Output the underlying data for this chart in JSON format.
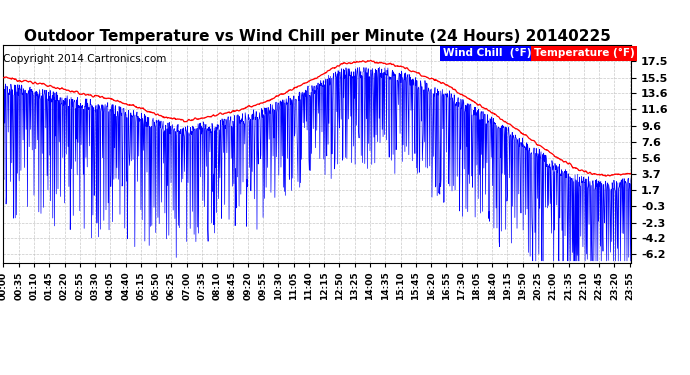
{
  "title": "Outdoor Temperature vs Wind Chill per Minute (24 Hours) 20140225",
  "copyright": "Copyright 2014 Cartronics.com",
  "yticks": [
    17.5,
    15.5,
    13.6,
    11.6,
    9.6,
    7.6,
    5.6,
    3.7,
    1.7,
    -0.3,
    -2.3,
    -4.2,
    -6.2
  ],
  "ylim": [
    -7.2,
    19.5
  ],
  "temp_color": "#ff0000",
  "windchill_color": "#0000ff",
  "background_color": "#ffffff",
  "grid_color": "#bbbbbb",
  "title_fontsize": 11,
  "copyright_fontsize": 7.5,
  "num_minutes": 1440,
  "knots_t": [
    0,
    1,
    2,
    3,
    4,
    5,
    6,
    6.5,
    7,
    8,
    9,
    10,
    11,
    11.5,
    12,
    12.5,
    13,
    13.5,
    14,
    14.5,
    15,
    15.5,
    16,
    16.5,
    17,
    17.5,
    18,
    18.5,
    19,
    19.5,
    20,
    20.5,
    21,
    21.5,
    22,
    22.5,
    23,
    23.5,
    24
  ],
  "knots_v": [
    15.5,
    15.0,
    14.3,
    13.5,
    13.0,
    12.0,
    10.8,
    10.4,
    10.2,
    10.8,
    11.5,
    12.5,
    14.0,
    14.8,
    15.5,
    16.5,
    17.2,
    17.4,
    17.5,
    17.3,
    17.0,
    16.5,
    15.8,
    15.2,
    14.5,
    13.5,
    12.5,
    11.5,
    10.5,
    9.5,
    8.3,
    7.2,
    6.0,
    5.0,
    4.2,
    3.7,
    3.5,
    3.6,
    3.7
  ]
}
